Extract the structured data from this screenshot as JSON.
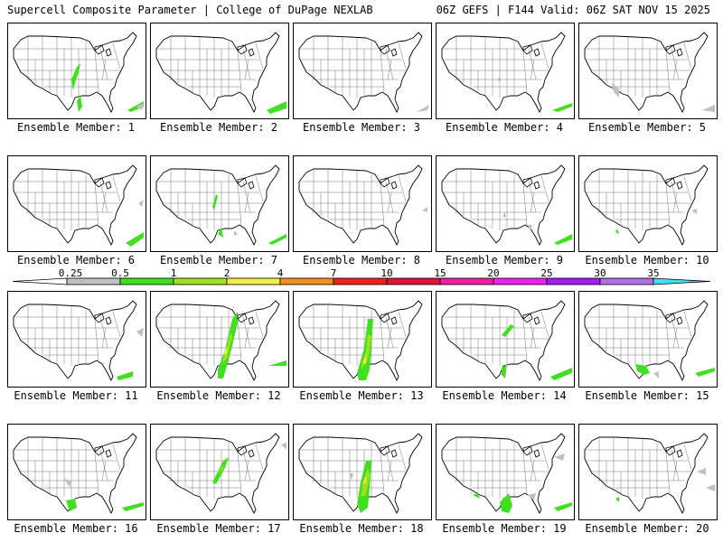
{
  "header": {
    "title": "Supercell Composite Parameter | College of DuPage NEXLAB",
    "valid": "06Z GEFS | F144 Valid: 06Z SAT NOV 15 2025"
  },
  "legend": {
    "labels": [
      "0.25",
      "0.5",
      "1",
      "2",
      "4",
      "7",
      "10",
      "15",
      "20",
      "25",
      "30",
      "35"
    ],
    "colors": [
      "#c0c0c0",
      "#40e020",
      "#a0e020",
      "#f0f040",
      "#f09020",
      "#f02020",
      "#e01040",
      "#f020a0",
      "#f020f0",
      "#a020f0",
      "#b070e0",
      "#40e0f0"
    ]
  },
  "members": [
    {
      "label": "Ensemble Member: 1"
    },
    {
      "label": "Ensemble Member: 2"
    },
    {
      "label": "Ensemble Member: 3"
    },
    {
      "label": "Ensemble Member: 4"
    },
    {
      "label": "Ensemble Member: 5"
    },
    {
      "label": "Ensemble Member: 6"
    },
    {
      "label": "Ensemble Member: 7"
    },
    {
      "label": "Ensemble Member: 8"
    },
    {
      "label": "Ensemble Member: 9"
    },
    {
      "label": "Ensemble Member: 10"
    },
    {
      "label": "Ensemble Member: 11"
    },
    {
      "label": "Ensemble Member: 12"
    },
    {
      "label": "Ensemble Member: 13"
    },
    {
      "label": "Ensemble Member: 14"
    },
    {
      "label": "Ensemble Member: 15"
    },
    {
      "label": "Ensemble Member: 16"
    },
    {
      "label": "Ensemble Member: 17"
    },
    {
      "label": "Ensemble Member: 18"
    },
    {
      "label": "Ensemble Member: 19"
    },
    {
      "label": "Ensemble Member: 20"
    }
  ]
}
